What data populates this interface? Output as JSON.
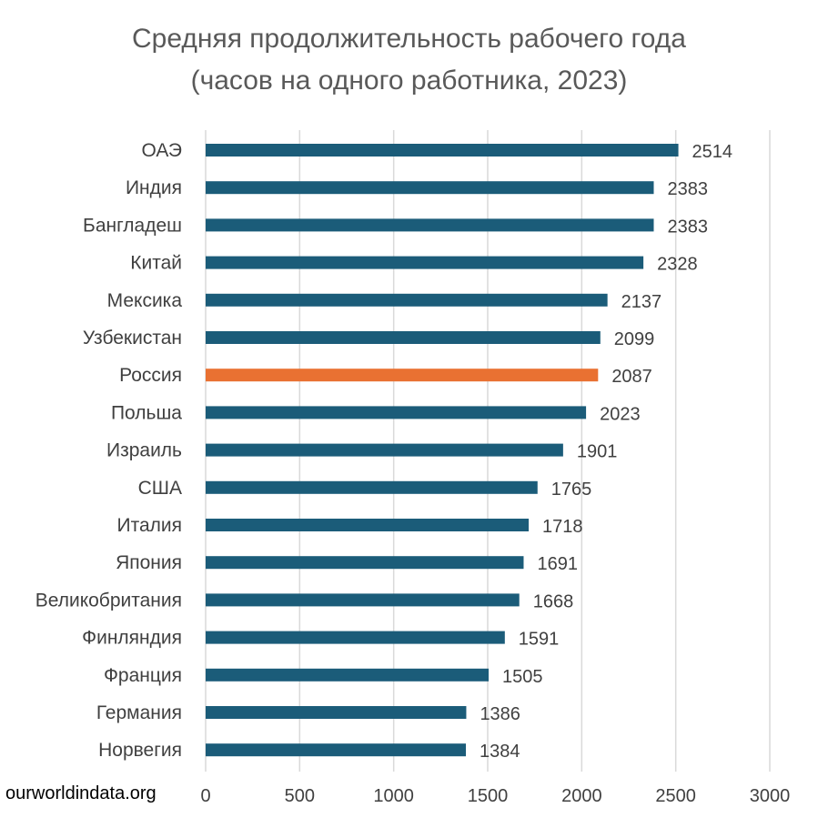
{
  "chart_data": {
    "type": "bar",
    "orientation": "horizontal",
    "title": "Средняя продолжительность рабочего года",
    "subtitle": "(часов на одного работника, 2023)",
    "categories": [
      "ОАЭ",
      "Индия",
      "Бангладеш",
      "Китай",
      "Мексика",
      "Узбекистан",
      "Россия",
      "Польша",
      "Израиль",
      "США",
      "Италия",
      "Япония",
      "Великобритания",
      "Финляндия",
      "Франция",
      "Германия",
      "Норвегия"
    ],
    "values": [
      2514,
      2383,
      2383,
      2328,
      2137,
      2099,
      2087,
      2023,
      1901,
      1765,
      1718,
      1691,
      1668,
      1591,
      1505,
      1386,
      1384
    ],
    "highlight": "Россия",
    "xlim": [
      0,
      3000
    ],
    "xticks": [
      0,
      500,
      1000,
      1500,
      2000,
      2500,
      3000
    ],
    "grid": true,
    "data_labels": true,
    "colors": {
      "bar": "#1B5C79",
      "highlight": "#E97132",
      "grid": "#D9D9D9",
      "text": "#404040"
    }
  },
  "source": "ourworldindata.org"
}
